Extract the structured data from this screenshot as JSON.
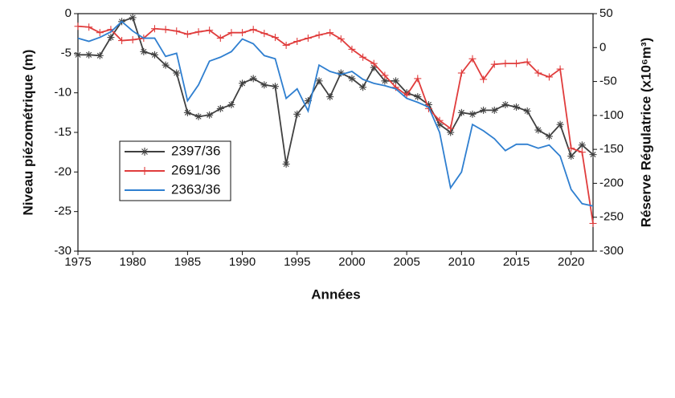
{
  "chart_data": {
    "type": "line",
    "x_label": "Années",
    "y_label": "Niveau piézométrique (m)",
    "y2_label": "Réserve Régulatrice (x10⁶m³)",
    "x": [
      1975,
      1976,
      1977,
      1978,
      1979,
      1980,
      1981,
      1982,
      1983,
      1984,
      1985,
      1986,
      1987,
      1988,
      1989,
      1990,
      1991,
      1992,
      1993,
      1994,
      1995,
      1996,
      1997,
      1998,
      1999,
      2000,
      2001,
      2002,
      2003,
      2004,
      2005,
      2006,
      2007,
      2008,
      2009,
      2010,
      2011,
      2012,
      2013,
      2014,
      2015,
      2016,
      2017,
      2018,
      2019,
      2020,
      2021,
      2022
    ],
    "series": [
      {
        "name": "2397/36",
        "color": "#404040",
        "marker": "asterisk",
        "values": [
          -5.2,
          -5.2,
          -5.3,
          -3,
          -1,
          -0.5,
          -4.8,
          -5.2,
          -6.5,
          -7.5,
          -12.5,
          -13,
          -12.8,
          -12,
          -11.5,
          -8.8,
          -8.2,
          -9,
          -9.2,
          -19,
          -12.7,
          -11,
          -8.5,
          -10.5,
          -7.5,
          -8.2,
          -9.3,
          -6.8,
          -8.5,
          -8.5,
          -10,
          -10.5,
          -11.5,
          -14,
          -15,
          -12.5,
          -12.7,
          -12.2,
          -12.2,
          -11.5,
          -11.8,
          -12.3,
          -14.7,
          -15.5,
          -14,
          -18,
          -16.6,
          -17.8
        ]
      },
      {
        "name": "2691/36",
        "color": "#e03c3c",
        "marker": "plus",
        "values": [
          -1.6,
          -1.7,
          -2.4,
          -2,
          -3.4,
          -3.3,
          -3.1,
          -1.9,
          -2,
          -2.2,
          -2.6,
          -2.3,
          -2.1,
          -3.1,
          -2.4,
          -2.4,
          -2,
          -2.5,
          -3,
          -4,
          -3.5,
          -3.1,
          -2.7,
          -2.4,
          -3.2,
          -4.5,
          -5.5,
          -6.3,
          -7.8,
          -9.3,
          -10.3,
          -8.2,
          -12,
          -13.5,
          -14.5,
          -7.5,
          -5.7,
          -8.3,
          -6.4,
          -6.3,
          -6.3,
          -6.1,
          -7.5,
          -8,
          -7,
          -17,
          -17.5,
          -26.5
        ]
      },
      {
        "name": "2363/36",
        "color": "#2f7fd0",
        "marker": "none",
        "values": [
          -3.1,
          -3.5,
          -3,
          -2.3,
          -1,
          -2.2,
          -3.1,
          -3.1,
          -5.4,
          -5,
          -11,
          -9,
          -6,
          -5.5,
          -4.8,
          -3.2,
          -3.8,
          -5.3,
          -5.7,
          -10.7,
          -9.5,
          -12.3,
          -6.5,
          -7.3,
          -7.7,
          -7.3,
          -8.3,
          -8.8,
          -9.1,
          -9.5,
          -10.7,
          -11.2,
          -11.8,
          -15,
          -22,
          -20,
          -14,
          -14.8,
          -15.8,
          -17.3,
          -16.5,
          -16.5,
          -17,
          -16.6,
          -18,
          -22.2,
          -24,
          -24.3
        ]
      }
    ],
    "xlim": [
      1975,
      2022
    ],
    "xticks": [
      1975,
      1980,
      1985,
      1990,
      1995,
      2000,
      2005,
      2010,
      2015,
      2020
    ],
    "ylim": [
      -30,
      0
    ],
    "yticks": [
      -30,
      -25,
      -20,
      -15,
      -10,
      -5,
      0
    ],
    "y2lim": [
      -300,
      50
    ],
    "y2ticks": [
      -300,
      -250,
      -200,
      -150,
      -100,
      -50,
      0,
      50
    ],
    "legend": "lower left"
  }
}
